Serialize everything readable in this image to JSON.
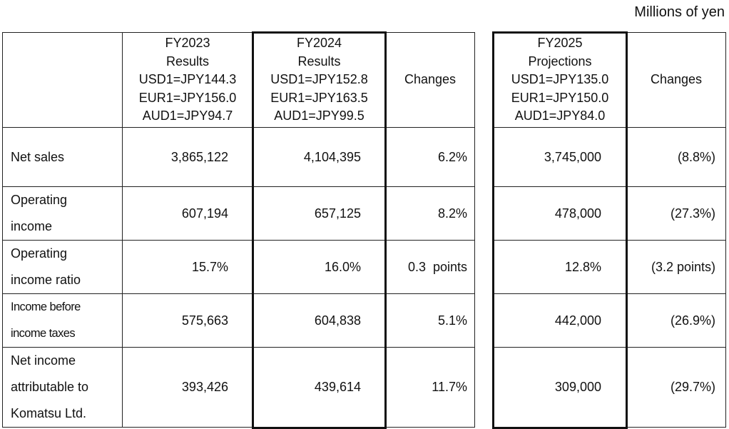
{
  "unit_label": "Millions of yen",
  "headers": [
    "",
    "FY2023\nResults\nUSD1=JPY144.3\nEUR1=JPY156.0\nAUD1=JPY94.7",
    "FY2024\nResults\nUSD1=JPY152.8\nEUR1=JPY163.5\nAUD1=JPY99.5",
    "Changes",
    "FY2025\nProjections\nUSD1=JPY135.0\nEUR1=JPY150.0\nAUD1=JPY84.0",
    "Changes"
  ],
  "rows": [
    {
      "label": "Net sales",
      "values": [
        "3,865,122",
        "4,104,395",
        "6.2%",
        "3,745,000",
        "(8.8%)"
      ]
    },
    {
      "label": "Operating\nincome",
      "values": [
        "607,194",
        "657,125",
        "8.2%",
        "478,000",
        "(27.3%)"
      ]
    },
    {
      "label": "Operating\nincome ratio",
      "values": [
        "15.7%",
        "16.0%",
        "0.3  points",
        "12.8%",
        "(3.2 points)"
      ]
    },
    {
      "label": "Income before\nincome taxes",
      "values": [
        "575,663",
        "604,838",
        "5.1%",
        "442,000",
        "(26.9%)"
      ]
    },
    {
      "label": "Net income\nattributable to\nKomatsu Ltd.",
      "values": [
        "393,426",
        "439,614",
        "11.7%",
        "309,000",
        "(29.7%)"
      ]
    }
  ]
}
